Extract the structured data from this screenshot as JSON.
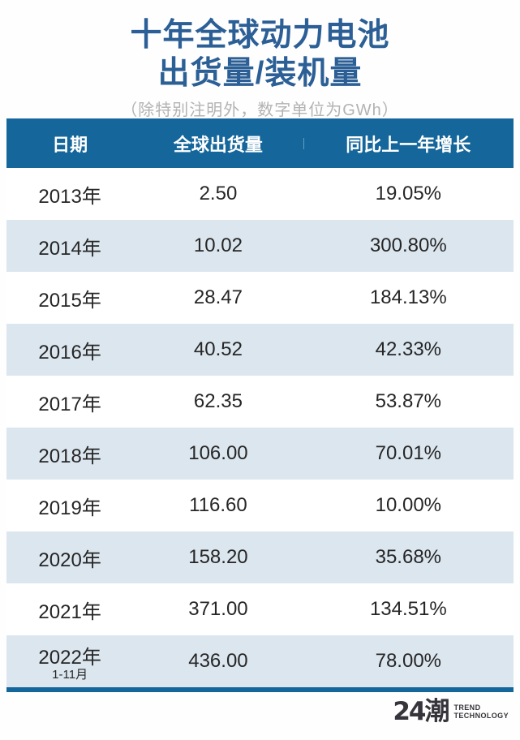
{
  "header": {
    "title_line1": "十年全球动力电池",
    "title_line2": "出货量/装机量",
    "subtitle": "（除特别注明外，数字单位为GWh）"
  },
  "table": {
    "columns": [
      "日期",
      "全球出货量",
      "同比上一年增长"
    ],
    "rows": [
      {
        "date": "2013年",
        "date_note": "",
        "shipment": "2.50",
        "growth": "19.05%"
      },
      {
        "date": "2014年",
        "date_note": "",
        "shipment": "10.02",
        "growth": "300.80%"
      },
      {
        "date": "2015年",
        "date_note": "",
        "shipment": "28.47",
        "growth": "184.13%"
      },
      {
        "date": "2016年",
        "date_note": "",
        "shipment": "40.52",
        "growth": "42.33%"
      },
      {
        "date": "2017年",
        "date_note": "",
        "shipment": "62.35",
        "growth": "53.87%"
      },
      {
        "date": "2018年",
        "date_note": "",
        "shipment": "106.00",
        "growth": "70.01%"
      },
      {
        "date": "2019年",
        "date_note": "",
        "shipment": "116.60",
        "growth": "10.00%"
      },
      {
        "date": "2020年",
        "date_note": "",
        "shipment": "158.20",
        "growth": "35.68%"
      },
      {
        "date": "2021年",
        "date_note": "",
        "shipment": "371.00",
        "growth": "134.51%"
      },
      {
        "date": "2022年",
        "date_note": "1-11月",
        "shipment": "436.00",
        "growth": "78.00%"
      }
    ]
  },
  "footer": {
    "logo_text": "24潮",
    "logo_sub_line1": "TREND",
    "logo_sub_line2": "TECHNOLOGY"
  },
  "colors": {
    "accent_blue": "#15669B",
    "title_blue": "#2B5F96",
    "alt_row": "#DCE6EF"
  },
  "chart_data": {
    "type": "table",
    "title": "十年全球动力电池出货量/装机量",
    "unit_note": "除特别注明外，数字单位为GWh",
    "columns": [
      "日期",
      "全球出货量",
      "同比上一年增长"
    ],
    "rows": [
      [
        "2013年",
        2.5,
        "19.05%"
      ],
      [
        "2014年",
        10.02,
        "300.80%"
      ],
      [
        "2015年",
        28.47,
        "184.13%"
      ],
      [
        "2016年",
        40.52,
        "42.33%"
      ],
      [
        "2017年",
        62.35,
        "53.87%"
      ],
      [
        "2018年",
        106.0,
        "70.01%"
      ],
      [
        "2019年",
        116.6,
        "10.00%"
      ],
      [
        "2020年",
        158.2,
        "35.68%"
      ],
      [
        "2021年",
        371.0,
        "134.51%"
      ],
      [
        "2022年 1-11月",
        436.0,
        "78.00%"
      ]
    ]
  }
}
